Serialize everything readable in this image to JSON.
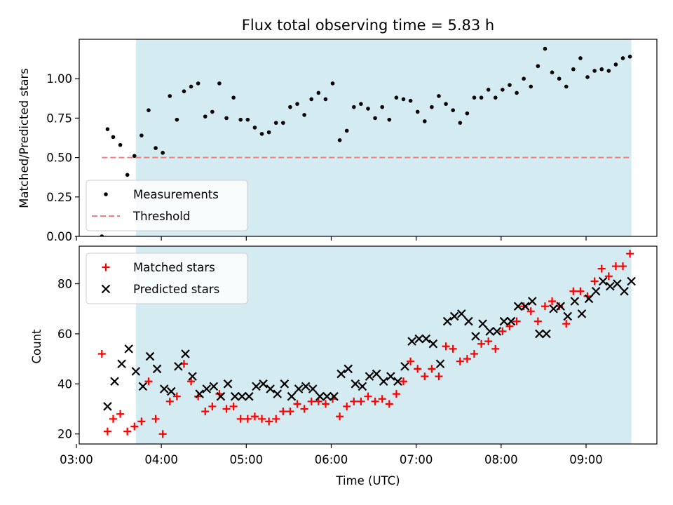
{
  "chart_data": [
    {
      "type": "scatter",
      "title": "Flux total observing time = 5.83 h",
      "ylabel": "Matched/Predicted stars",
      "xlabel": "",
      "xlim": [
        "03:02",
        "09:50"
      ],
      "ylim": [
        0,
        1.25
      ],
      "yticks": [
        "0.00",
        "0.25",
        "0.50",
        "0.75",
        "1.00"
      ],
      "grid": false,
      "legend_position": "lower-left",
      "shaded_span": {
        "start": "03:42",
        "end": "09:32",
        "color": "#d4ebf1"
      },
      "series": [
        {
          "name": "Measurements",
          "marker": "dot",
          "color": "#000000",
          "points": [
            [
              "03:18",
              0.0
            ],
            [
              "03:22",
              0.68
            ],
            [
              "03:26",
              0.63
            ],
            [
              "03:31",
              0.58
            ],
            [
              "03:36",
              0.39
            ],
            [
              "03:41",
              0.51
            ],
            [
              "03:46",
              0.64
            ],
            [
              "03:51",
              0.8
            ],
            [
              "03:56",
              0.56
            ],
            [
              "04:01",
              0.53
            ],
            [
              "04:06",
              0.89
            ],
            [
              "04:11",
              0.74
            ],
            [
              "04:16",
              0.92
            ],
            [
              "04:21",
              0.95
            ],
            [
              "04:26",
              0.97
            ],
            [
              "04:31",
              0.76
            ],
            [
              "04:36",
              0.79
            ],
            [
              "04:41",
              0.97
            ],
            [
              "04:46",
              0.75
            ],
            [
              "04:51",
              0.88
            ],
            [
              "04:56",
              0.74
            ],
            [
              "05:01",
              0.74
            ],
            [
              "05:06",
              0.69
            ],
            [
              "05:11",
              0.65
            ],
            [
              "05:16",
              0.66
            ],
            [
              "05:21",
              0.72
            ],
            [
              "05:26",
              0.72
            ],
            [
              "05:31",
              0.82
            ],
            [
              "05:36",
              0.84
            ],
            [
              "05:41",
              0.77
            ],
            [
              "05:46",
              0.87
            ],
            [
              "05:51",
              0.91
            ],
            [
              "05:56",
              0.87
            ],
            [
              "06:01",
              0.97
            ],
            [
              "06:06",
              0.61
            ],
            [
              "06:11",
              0.67
            ],
            [
              "06:16",
              0.82
            ],
            [
              "06:21",
              0.84
            ],
            [
              "06:26",
              0.81
            ],
            [
              "06:31",
              0.75
            ],
            [
              "06:36",
              0.82
            ],
            [
              "06:41",
              0.74
            ],
            [
              "06:46",
              0.88
            ],
            [
              "06:51",
              0.87
            ],
            [
              "06:56",
              0.86
            ],
            [
              "07:01",
              0.79
            ],
            [
              "07:06",
              0.73
            ],
            [
              "07:11",
              0.82
            ],
            [
              "07:16",
              0.89
            ],
            [
              "07:21",
              0.84
            ],
            [
              "07:26",
              0.8
            ],
            [
              "07:31",
              0.72
            ],
            [
              "07:36",
              0.78
            ],
            [
              "07:41",
              0.88
            ],
            [
              "07:46",
              0.88
            ],
            [
              "07:51",
              0.93
            ],
            [
              "07:56",
              0.88
            ],
            [
              "08:01",
              0.93
            ],
            [
              "08:06",
              0.96
            ],
            [
              "08:11",
              0.91
            ],
            [
              "08:16",
              1.0
            ],
            [
              "08:21",
              0.95
            ],
            [
              "08:26",
              1.08
            ],
            [
              "08:31",
              1.19
            ],
            [
              "08:36",
              1.04
            ],
            [
              "08:41",
              1.0
            ],
            [
              "08:46",
              0.95
            ],
            [
              "08:51",
              1.06
            ],
            [
              "08:56",
              1.13
            ],
            [
              "09:01",
              1.01
            ],
            [
              "09:06",
              1.05
            ],
            [
              "09:11",
              1.06
            ],
            [
              "09:16",
              1.05
            ],
            [
              "09:21",
              1.09
            ],
            [
              "09:26",
              1.13
            ],
            [
              "09:31",
              1.14
            ]
          ]
        },
        {
          "name": "Threshold",
          "marker": "dashed-line",
          "color": "#f08080",
          "points": [
            [
              "03:18",
              0.5
            ],
            [
              "09:32",
              0.5
            ]
          ]
        }
      ]
    },
    {
      "type": "scatter",
      "title": "",
      "ylabel": "Count",
      "xlabel": "Time (UTC)",
      "xlim": [
        "03:02",
        "09:50"
      ],
      "ylim": [
        16,
        95
      ],
      "yticks": [
        "20",
        "40",
        "60",
        "80"
      ],
      "xticks": [
        "03:00",
        "04:00",
        "05:00",
        "06:00",
        "07:00",
        "08:00",
        "09:00"
      ],
      "grid": false,
      "legend_position": "upper-left",
      "shaded_span": {
        "start": "03:42",
        "end": "09:32",
        "color": "#d4ebf1"
      },
      "series": [
        {
          "name": "Matched stars",
          "marker": "plus",
          "color": "#ff0000",
          "points": [
            [
              "03:18",
              52
            ],
            [
              "03:22",
              21
            ],
            [
              "03:26",
              26
            ],
            [
              "03:31",
              28
            ],
            [
              "03:36",
              21
            ],
            [
              "03:41",
              23
            ],
            [
              "03:46",
              25
            ],
            [
              "03:51",
              41
            ],
            [
              "03:56",
              26
            ],
            [
              "04:01",
              20
            ],
            [
              "04:06",
              33
            ],
            [
              "04:11",
              35
            ],
            [
              "04:16",
              48
            ],
            [
              "04:21",
              41
            ],
            [
              "04:26",
              35
            ],
            [
              "04:31",
              29
            ],
            [
              "04:36",
              31
            ],
            [
              "04:41",
              36
            ],
            [
              "04:46",
              30
            ],
            [
              "04:51",
              31
            ],
            [
              "04:56",
              26
            ],
            [
              "05:01",
              26
            ],
            [
              "05:06",
              27
            ],
            [
              "05:11",
              26
            ],
            [
              "05:16",
              25
            ],
            [
              "05:21",
              26
            ],
            [
              "05:26",
              29
            ],
            [
              "05:31",
              29
            ],
            [
              "05:36",
              32
            ],
            [
              "05:41",
              30
            ],
            [
              "05:46",
              33
            ],
            [
              "05:51",
              33
            ],
            [
              "05:56",
              32
            ],
            [
              "06:01",
              34
            ],
            [
              "06:06",
              27
            ],
            [
              "06:11",
              31
            ],
            [
              "06:16",
              33
            ],
            [
              "06:21",
              33
            ],
            [
              "06:26",
              35
            ],
            [
              "06:31",
              33
            ],
            [
              "06:36",
              34
            ],
            [
              "06:41",
              32
            ],
            [
              "06:46",
              36
            ],
            [
              "06:51",
              41
            ],
            [
              "06:56",
              49
            ],
            [
              "07:01",
              46
            ],
            [
              "07:06",
              43
            ],
            [
              "07:11",
              46
            ],
            [
              "07:16",
              43
            ],
            [
              "07:21",
              55
            ],
            [
              "07:26",
              54
            ],
            [
              "07:31",
              49
            ],
            [
              "07:36",
              50
            ],
            [
              "07:41",
              52
            ],
            [
              "07:46",
              56
            ],
            [
              "07:51",
              57
            ],
            [
              "07:56",
              54
            ],
            [
              "08:01",
              61
            ],
            [
              "08:06",
              63
            ],
            [
              "08:11",
              65
            ],
            [
              "08:16",
              71
            ],
            [
              "08:21",
              69
            ],
            [
              "08:26",
              65
            ],
            [
              "08:31",
              71
            ],
            [
              "08:36",
              73
            ],
            [
              "08:41",
              71
            ],
            [
              "08:46",
              64
            ],
            [
              "08:51",
              77
            ],
            [
              "08:56",
              77
            ],
            [
              "09:01",
              75
            ],
            [
              "09:06",
              81
            ],
            [
              "09:11",
              86
            ],
            [
              "09:16",
              83
            ],
            [
              "09:21",
              87
            ],
            [
              "09:26",
              87
            ],
            [
              "09:31",
              92
            ]
          ]
        },
        {
          "name": "Predicted stars",
          "marker": "x",
          "color": "#000000",
          "points": [
            [
              "03:22",
              31
            ],
            [
              "03:27",
              41
            ],
            [
              "03:32",
              48
            ],
            [
              "03:37",
              54
            ],
            [
              "03:42",
              45
            ],
            [
              "03:47",
              39
            ],
            [
              "03:52",
              51
            ],
            [
              "03:57",
              46
            ],
            [
              "04:02",
              38
            ],
            [
              "04:07",
              37
            ],
            [
              "04:12",
              47
            ],
            [
              "04:17",
              52
            ],
            [
              "04:22",
              43
            ],
            [
              "04:27",
              36
            ],
            [
              "04:32",
              38
            ],
            [
              "04:37",
              39
            ],
            [
              "04:42",
              35
            ],
            [
              "04:47",
              40
            ],
            [
              "04:52",
              35
            ],
            [
              "04:57",
              35
            ],
            [
              "05:02",
              35
            ],
            [
              "05:07",
              39
            ],
            [
              "05:12",
              40
            ],
            [
              "05:17",
              38
            ],
            [
              "05:22",
              36
            ],
            [
              "05:27",
              40
            ],
            [
              "05:32",
              35
            ],
            [
              "05:37",
              38
            ],
            [
              "05:42",
              39
            ],
            [
              "05:47",
              38
            ],
            [
              "05:52",
              35
            ],
            [
              "05:57",
              35
            ],
            [
              "06:02",
              35
            ],
            [
              "06:07",
              44
            ],
            [
              "06:12",
              46
            ],
            [
              "06:17",
              40
            ],
            [
              "06:22",
              39
            ],
            [
              "06:27",
              43
            ],
            [
              "06:32",
              44
            ],
            [
              "06:37",
              41
            ],
            [
              "06:42",
              43
            ],
            [
              "06:47",
              41
            ],
            [
              "06:52",
              47
            ],
            [
              "06:57",
              57
            ],
            [
              "07:02",
              58
            ],
            [
              "07:07",
              58
            ],
            [
              "07:12",
              56
            ],
            [
              "07:17",
              48
            ],
            [
              "07:22",
              65
            ],
            [
              "07:27",
              67
            ],
            [
              "07:32",
              68
            ],
            [
              "07:37",
              65
            ],
            [
              "07:42",
              59
            ],
            [
              "07:47",
              64
            ],
            [
              "07:52",
              61
            ],
            [
              "07:57",
              61
            ],
            [
              "08:02",
              65
            ],
            [
              "08:07",
              65
            ],
            [
              "08:12",
              71
            ],
            [
              "08:17",
              71
            ],
            [
              "08:22",
              73
            ],
            [
              "08:27",
              60
            ],
            [
              "08:32",
              60
            ],
            [
              "08:37",
              70
            ],
            [
              "08:42",
              71
            ],
            [
              "08:47",
              67
            ],
            [
              "08:52",
              73
            ],
            [
              "08:57",
              68
            ],
            [
              "09:02",
              74
            ],
            [
              "09:07",
              77
            ],
            [
              "09:12",
              81
            ],
            [
              "09:17",
              79
            ],
            [
              "09:22",
              80
            ],
            [
              "09:27",
              77
            ],
            [
              "09:32",
              81
            ]
          ]
        }
      ]
    }
  ]
}
